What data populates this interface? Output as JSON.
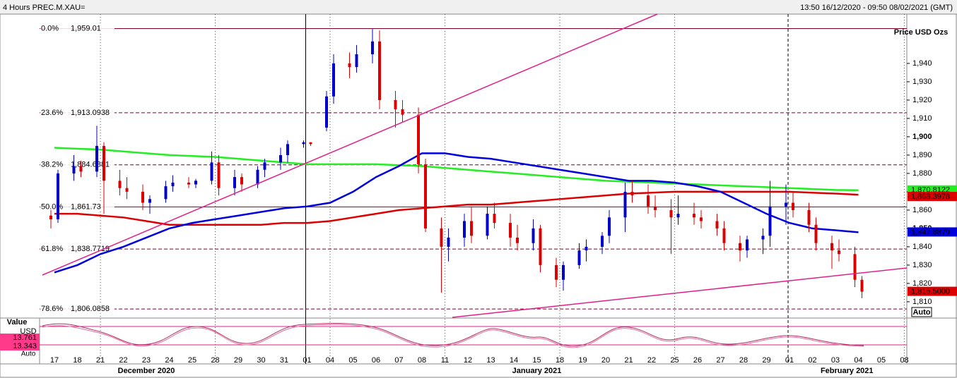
{
  "header": {
    "title": "4 Hours PREC.M.XAU=",
    "range": "13:50 16/12/2020 - 09:50 08/02/2021 (GMT)"
  },
  "chart_data": {
    "type": "candlestick",
    "y_axis_label": "Price USD Ozs",
    "auto_label": "Auto",
    "ylim": [
      1801.5,
      1966.9
    ],
    "yticks": [
      {
        "value": 1810,
        "label": "1,810"
      },
      {
        "value": 1820,
        "label": "1,820"
      },
      {
        "value": 1830,
        "label": "1,830"
      },
      {
        "value": 1840,
        "label": "1,840"
      },
      {
        "value": 1850,
        "label": "1,850"
      },
      {
        "value": 1860,
        "label": "1,860"
      },
      {
        "value": 1870,
        "label": "1,870"
      },
      {
        "value": 1880,
        "label": "1,880"
      },
      {
        "value": 1890,
        "label": "1,890"
      },
      {
        "value": 1900,
        "label": "1,900"
      },
      {
        "value": 1910,
        "label": "1,910"
      },
      {
        "value": 1920,
        "label": "1,920"
      },
      {
        "value": 1930,
        "label": "1,930"
      },
      {
        "value": 1940,
        "label": "1,940"
      }
    ],
    "categories": [
      "17",
      "18",
      "21",
      "22",
      "23",
      "24",
      "25",
      "28",
      "29",
      "30",
      "31",
      "01",
      "04",
      "05",
      "06",
      "07",
      "08",
      "11",
      "12",
      "13",
      "14",
      "15",
      "18",
      "19",
      "20",
      "21",
      "22",
      "25",
      "26",
      "27",
      "28",
      "29",
      "01",
      "02",
      "03",
      "04",
      "05",
      "08"
    ],
    "months": [
      {
        "label": "December 2020",
        "at": 4
      },
      {
        "label": "January 2021",
        "at": 21
      },
      {
        "label": "February 2021",
        "at": 34.5
      }
    ],
    "up_color": "#0000cc",
    "down_color": "#dd0000",
    "candles": [
      [
        1857,
        1860,
        1850,
        1855
      ],
      [
        1855,
        1882,
        1853,
        1880
      ],
      [
        1880,
        1890,
        1876,
        1884
      ],
      [
        1884,
        1887,
        1878,
        1881
      ],
      [
        1881,
        1906,
        1878,
        1895
      ],
      [
        1895,
        1897,
        1858,
        1876
      ],
      [
        1876,
        1882,
        1868,
        1872
      ],
      [
        1872,
        1878,
        1866,
        1870
      ],
      [
        1870,
        1874,
        1860,
        1864
      ],
      [
        1864,
        1868,
        1858,
        1866
      ],
      [
        1866,
        1876,
        1864,
        1873
      ],
      [
        1873,
        1879,
        1870,
        1875
      ],
      [
        1875,
        1878,
        1872,
        1874
      ],
      [
        1874,
        1877,
        1872,
        1876
      ],
      [
        1876,
        1892,
        1874,
        1886
      ],
      [
        1886,
        1890,
        1868,
        1872
      ],
      [
        1872,
        1882,
        1868,
        1878
      ],
      [
        1878,
        1880,
        1870,
        1874
      ],
      [
        1874,
        1884,
        1872,
        1882
      ],
      [
        1882,
        1888,
        1878,
        1886
      ],
      [
        1886,
        1894,
        1882,
        1890
      ],
      [
        1890,
        1898,
        1886,
        1896
      ],
      [
        1896,
        1898,
        1894,
        1897
      ],
      [
        1897,
        1897,
        1895,
        1896
      ],
      [
        1905,
        1925,
        1903,
        1922
      ],
      [
        1922,
        1945,
        1918,
        1940
      ],
      [
        1940,
        1946,
        1932,
        1938
      ],
      [
        1938,
        1950,
        1935,
        1945
      ],
      [
        1945,
        1959,
        1940,
        1952
      ],
      [
        1952,
        1958,
        1915,
        1920
      ],
      [
        1920,
        1925,
        1905,
        1915
      ],
      [
        1915,
        1920,
        1908,
        1912
      ],
      [
        1912,
        1916,
        1880,
        1885
      ],
      [
        1885,
        1888,
        1848,
        1850
      ],
      [
        1850,
        1856,
        1815,
        1840
      ],
      [
        1840,
        1850,
        1832,
        1845
      ],
      [
        1845,
        1858,
        1840,
        1854
      ],
      [
        1854,
        1862,
        1842,
        1846
      ],
      [
        1846,
        1862,
        1844,
        1858
      ],
      [
        1858,
        1864,
        1850,
        1853
      ],
      [
        1853,
        1858,
        1840,
        1845
      ],
      [
        1845,
        1852,
        1838,
        1842
      ],
      [
        1842,
        1855,
        1838,
        1850
      ],
      [
        1850,
        1852,
        1826,
        1830
      ],
      [
        1830,
        1834,
        1818,
        1822
      ],
      [
        1822,
        1832,
        1816,
        1830
      ],
      [
        1830,
        1842,
        1828,
        1838
      ],
      [
        1838,
        1844,
        1832,
        1840
      ],
      [
        1840,
        1848,
        1836,
        1846
      ],
      [
        1846,
        1860,
        1842,
        1856
      ],
      [
        1856,
        1875,
        1848,
        1870
      ],
      [
        1870,
        1876,
        1864,
        1868
      ],
      [
        1868,
        1874,
        1858,
        1862
      ],
      [
        1862,
        1868,
        1856,
        1860
      ],
      [
        1860,
        1866,
        1836,
        1856
      ],
      [
        1856,
        1868,
        1852,
        1858
      ],
      [
        1858,
        1864,
        1852,
        1856
      ],
      [
        1856,
        1860,
        1850,
        1854
      ],
      [
        1854,
        1858,
        1846,
        1850
      ],
      [
        1850,
        1854,
        1838,
        1842
      ],
      [
        1842,
        1846,
        1832,
        1838
      ],
      [
        1838,
        1846,
        1834,
        1844
      ],
      [
        1844,
        1850,
        1836,
        1846
      ],
      [
        1846,
        1876,
        1840,
        1862
      ],
      [
        1862,
        1874,
        1852,
        1864
      ],
      [
        1864,
        1870,
        1856,
        1860
      ],
      [
        1860,
        1864,
        1848,
        1852
      ],
      [
        1852,
        1856,
        1838,
        1842
      ],
      [
        1842,
        1846,
        1828,
        1838
      ],
      [
        1838,
        1844,
        1832,
        1836
      ],
      [
        1836,
        1840,
        1818,
        1822
      ],
      [
        1822,
        1824,
        1812,
        1815.5
      ]
    ],
    "last_label": "1,815.5000",
    "series": [
      {
        "color": "#22ee22",
        "value_label": "1,870.8122",
        "values": [
          1894,
          1893.5,
          1893,
          1892,
          1891,
          1890,
          1889.5,
          1889,
          1888,
          1887,
          1886,
          1885,
          1885,
          1885,
          1885,
          1884.5,
          1884,
          1883,
          1882,
          1881,
          1880,
          1879,
          1878,
          1877,
          1876,
          1875.5,
          1875,
          1874.5,
          1874,
          1873.5,
          1873,
          1872.5,
          1872,
          1871.5,
          1871,
          1870.8122,
          null,
          null
        ]
      },
      {
        "color": "#dd0000",
        "value_label": "1,868.3978",
        "values": [
          1858,
          1858,
          1857,
          1856,
          1854,
          1852,
          1852,
          1852,
          1852,
          1852,
          1853,
          1853,
          1854,
          1856,
          1858,
          1860,
          1861,
          1862,
          1863,
          1863,
          1864,
          1865,
          1866,
          1867,
          1868,
          1869,
          1869.5,
          1870,
          1870,
          1870,
          1870,
          1870,
          1870,
          1869.5,
          1869,
          1868.3978,
          null,
          null
        ]
      },
      {
        "color": "#0000dd",
        "value_label": "1,847.8879",
        "values": [
          1826,
          1830,
          1836,
          1840,
          1845,
          1850,
          1853,
          1855,
          1857,
          1859,
          1861,
          1862,
          1864,
          1870,
          1878,
          1884,
          1891,
          1891,
          1889,
          1888,
          1886,
          1884,
          1882,
          1880,
          1878,
          1876,
          1876,
          1875,
          1873,
          1870,
          1864,
          1858,
          1853,
          1850,
          1849,
          1847.8879,
          null,
          null
        ]
      }
    ],
    "fib_levels": [
      {
        "pct": "0.0%",
        "label": "1,959.01",
        "value": 1959.01
      },
      {
        "pct": "23.6%",
        "label": "1,913.0938",
        "value": 1913.0938
      },
      {
        "pct": "38.2%",
        "label": "1,884.6881",
        "value": 1884.6881
      },
      {
        "pct": "50.0%",
        "label": "1,861.73",
        "value": 1861.73
      },
      {
        "pct": "61.8%",
        "label": "1,838.7719",
        "value": 1838.7719
      },
      {
        "pct": "78.6%",
        "label": "1,806.0858",
        "value": 1806.0858
      }
    ]
  },
  "oscillator": {
    "title": "Value",
    "unit": "USD",
    "value_a": "13.761",
    "value_b": "13.343",
    "auto_label": "Auto"
  }
}
